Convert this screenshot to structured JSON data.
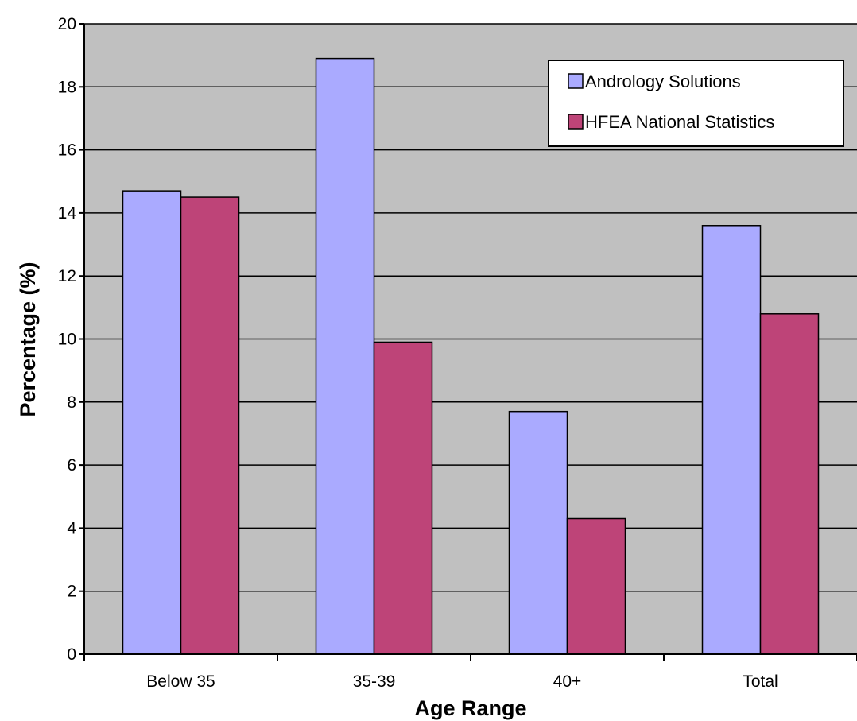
{
  "chart_data": {
    "type": "bar",
    "title": "",
    "xlabel": "Age Range",
    "ylabel": "Percentage (%)",
    "categories": [
      "Below 35",
      "35-39",
      "40+",
      "Total"
    ],
    "series": [
      {
        "name": "Andrology Solutions",
        "values": [
          14.7,
          18.9,
          7.7,
          13.6
        ],
        "color": "#aaaaff"
      },
      {
        "name": "HFEA National Statistics",
        "values": [
          14.5,
          9.9,
          4.3,
          10.8
        ],
        "color": "#be4478"
      }
    ],
    "ylim": [
      0,
      20
    ],
    "yticks": [
      "0",
      "2",
      "4",
      "6",
      "8",
      "10",
      "12",
      "14",
      "16",
      "18",
      "20"
    ],
    "grid": true,
    "plot_background": "#c0c0c0",
    "legend_position": "top-right"
  }
}
